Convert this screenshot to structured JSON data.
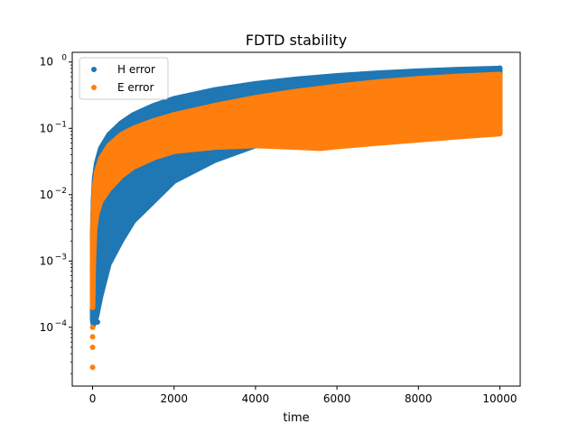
{
  "chart_data": {
    "type": "scatter",
    "title": "FDTD stability",
    "xlabel": "time",
    "ylabel": "",
    "xlim": [
      -500,
      10500
    ],
    "ylim": [
      1.3e-05,
      1.4
    ],
    "yscale": "log",
    "grid": false,
    "legend_position": "top-left",
    "xticks": [
      0,
      2000,
      4000,
      6000,
      8000,
      10000
    ],
    "xtick_labels": [
      "0",
      "2000",
      "4000",
      "6000",
      "8000",
      "10000"
    ],
    "yticks": [
      0.0001,
      0.001,
      0.01,
      0.1,
      1
    ],
    "ytick_base": "10",
    "ytick_exponents": [
      "−4",
      "−3",
      "−2",
      "−1",
      "0"
    ],
    "series": [
      {
        "name": "H error",
        "color": "#1f77b4",
        "envelope": {
          "x": [
            0,
            20,
            50,
            100,
            200,
            400,
            700,
            1000,
            1500,
            2000,
            3000,
            4000,
            5000,
            6000,
            7000,
            8000,
            9000,
            10000
          ],
          "upper": [
            0.0025,
            0.008,
            0.018,
            0.03,
            0.05,
            0.08,
            0.12,
            0.16,
            0.22,
            0.28,
            0.38,
            0.47,
            0.55,
            0.62,
            0.68,
            0.73,
            0.77,
            0.8
          ],
          "lower": [
            0.00013,
            0.00011,
            0.00012,
            0.00015,
            0.0003,
            0.0009,
            0.002,
            0.004,
            0.008,
            0.016,
            0.033,
            0.055,
            0.07,
            0.078,
            0.083,
            0.087,
            0.09,
            0.093
          ]
        },
        "points": [
          {
            "x": 0,
            "y": 0.002
          },
          {
            "x": 0,
            "y": 0.0006
          },
          {
            "x": 20,
            "y": 0.00015
          },
          {
            "x": 120,
            "y": 0.00012
          },
          {
            "x": 10000,
            "y": 0.81
          }
        ]
      },
      {
        "name": "E error",
        "color": "#ff7f0e",
        "envelope": {
          "x": [
            0,
            20,
            50,
            100,
            200,
            400,
            700,
            1000,
            1500,
            2000,
            3000,
            4000,
            5000,
            5600,
            6000,
            7000,
            8000,
            9000,
            10000
          ],
          "upper": [
            0.0018,
            0.006,
            0.013,
            0.022,
            0.035,
            0.055,
            0.08,
            0.1,
            0.13,
            0.16,
            0.22,
            0.29,
            0.36,
            0.4,
            0.43,
            0.5,
            0.56,
            0.61,
            0.65
          ],
          "lower": [
            0.0002,
            0.001,
            0.003,
            0.005,
            0.008,
            0.012,
            0.019,
            0.026,
            0.036,
            0.045,
            0.052,
            0.055,
            0.052,
            0.05,
            0.053,
            0.06,
            0.067,
            0.075,
            0.083
          ]
        },
        "points": [
          {
            "x": 0,
            "y": 2.5e-05
          },
          {
            "x": 0,
            "y": 5e-05
          },
          {
            "x": 0,
            "y": 7.2e-05
          },
          {
            "x": 0,
            "y": 0.0001
          },
          {
            "x": 0,
            "y": 0.0002
          },
          {
            "x": 0,
            "y": 0.0006
          }
        ]
      }
    ]
  }
}
